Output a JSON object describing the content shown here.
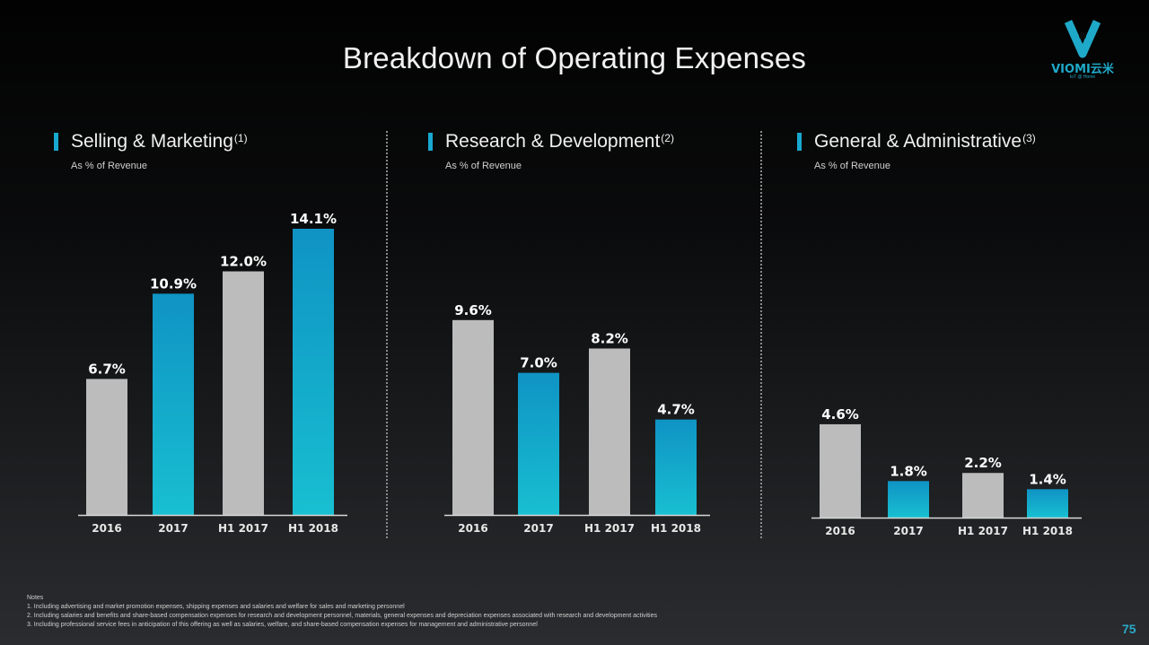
{
  "slide": {
    "title": "Breakdown of Operating Expenses",
    "logo_text": "VIOMI云米",
    "logo_sub": "IoT @ Home",
    "page_number": "75"
  },
  "panels": [
    {
      "heading": "Selling & Marketing",
      "footnote_ref": "(1)",
      "subtitle": "As % of Revenue"
    },
    {
      "heading": "Research & Development",
      "footnote_ref": "(2)",
      "subtitle": "As % of Revenue"
    },
    {
      "heading": "General & Administrative",
      "footnote_ref": "(3)",
      "subtitle": "As % of Revenue"
    }
  ],
  "notes": {
    "heading": "Notes",
    "items": [
      "1. Including advertising and market promotion expenses, shipping expenses and salaries and welfare for sales and marketing personnel",
      "2. Including salaries and benefits and share-based compensation expenses for research and development personnel, materials, general expenses and depreciation expenses associated with research and development activities",
      "3. Including professional service fees in anticipation of this offering as well as salaries, welfare, and share-based compensation expenses for management and administrative personnel"
    ]
  },
  "colors": {
    "gray": "#bcbcbc",
    "teal_top": "#0f93c4",
    "teal_bottom": "#18bfd1",
    "accent": "#18a8cf"
  },
  "chart_data": [
    {
      "type": "bar",
      "title": "Selling & Marketing",
      "ylabel": "As % of Revenue",
      "categories": [
        "2016",
        "2017",
        "H1 2017",
        "H1 2018"
      ],
      "values": [
        6.7,
        10.9,
        12.0,
        14.1
      ],
      "labels": [
        "6.7%",
        "10.9%",
        "12.0%",
        "14.1%"
      ],
      "colors": [
        "gray",
        "teal",
        "gray",
        "teal"
      ],
      "ylim": [
        0,
        14.1
      ]
    },
    {
      "type": "bar",
      "title": "Research & Development",
      "ylabel": "As % of Revenue",
      "categories": [
        "2016",
        "2017",
        "H1 2017",
        "H1 2018"
      ],
      "values": [
        9.6,
        7.0,
        8.2,
        4.7
      ],
      "labels": [
        "9.6%",
        "7.0%",
        "8.2%",
        "4.7%"
      ],
      "colors": [
        "gray",
        "teal",
        "gray",
        "teal"
      ],
      "ylim": [
        0,
        14.1
      ]
    },
    {
      "type": "bar",
      "title": "General & Administrative",
      "ylabel": "As % of Revenue",
      "categories": [
        "2016",
        "2017",
        "H1 2017",
        "H1 2018"
      ],
      "values": [
        4.6,
        1.8,
        2.2,
        1.4
      ],
      "labels": [
        "4.6%",
        "1.8%",
        "2.2%",
        "1.4%"
      ],
      "colors": [
        "gray",
        "teal",
        "gray",
        "teal"
      ],
      "ylim": [
        0,
        14.1
      ]
    }
  ]
}
